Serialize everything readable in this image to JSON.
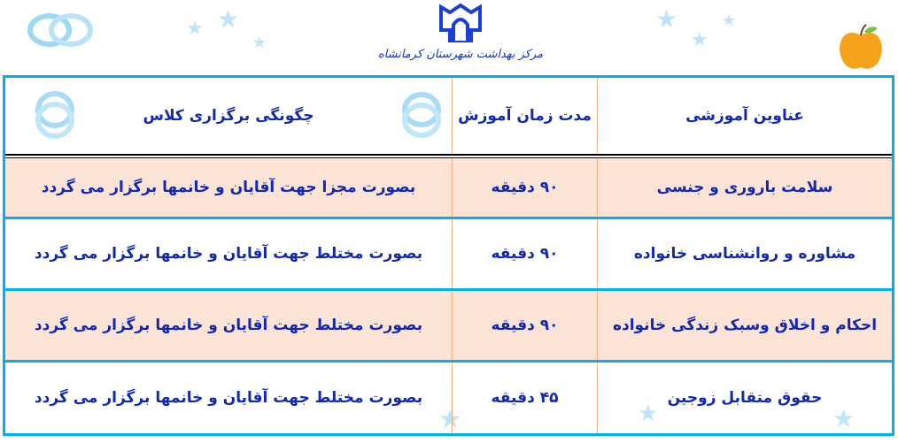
{
  "header": {
    "organization": "مرکز بهداشت شهرستان کرمانشاه"
  },
  "table": {
    "columns": [
      "عناوین آموزشی",
      "مدت زمان آموزش",
      "چگونگی برگزاری کلاس"
    ],
    "rows": [
      {
        "topic": "سلامت باروری و جنسی",
        "duration": "۹۰ دقیقه",
        "format": "بصورت مجزا جهت آقایان و خانمها برگزار می گردد"
      },
      {
        "topic": "مشاوره و روانشناسی خانواده",
        "duration": "۹۰ دقیقه",
        "format": "بصورت مختلط جهت آقایان و خانمها برگزار می گردد"
      },
      {
        "topic": "احکام و اخلاق وسبک زندگی خانواده",
        "duration": "۹۰ دقیقه",
        "format": "بصورت مختلط جهت آقایان و خانمها برگزار می گردد"
      },
      {
        "topic": "حقوق متقابل زوجین",
        "duration": "۴۵ دقیقه",
        "format": "بصورت مختلط جهت آقایان و خانمها برگزار می گردد"
      }
    ]
  },
  "colors": {
    "border": "#00b0f0",
    "text": "#1228b0",
    "row_highlight": "#fbe4d5",
    "column_divider": "#f4b183"
  },
  "icons": [
    "wedding-rings-icon",
    "university-logo-icon",
    "apple-icon",
    "star-icon"
  ]
}
